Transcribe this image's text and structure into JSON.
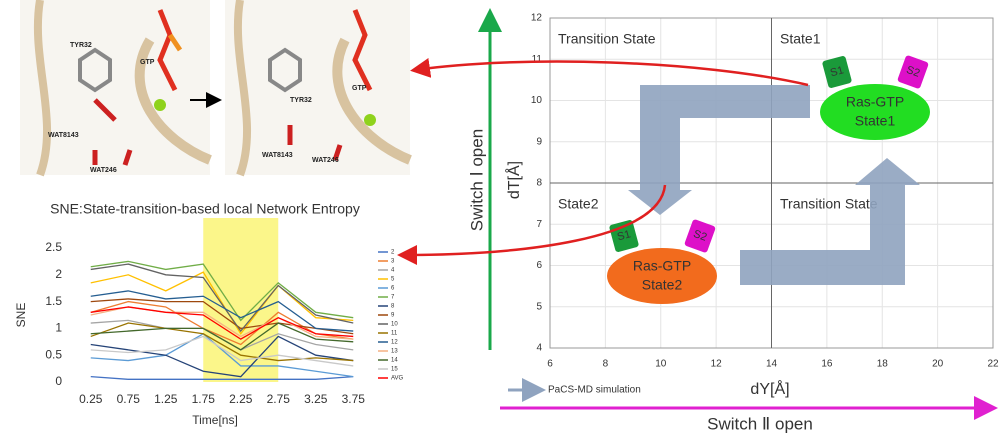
{
  "structures": {
    "left": [
      "TYR32",
      "GTP",
      "WAT8143",
      "WAT246"
    ],
    "right": [
      "TYR32",
      "GTP",
      "WAT8143",
      "WAT246"
    ]
  },
  "chart_data": [
    {
      "type": "line",
      "title": "SNE:State-transition-based local Network Entropy",
      "x_label": "Time[ns]",
      "y_label": "SNE",
      "categories": [
        "0.25",
        "0.75",
        "1.25",
        "1.75",
        "2.25",
        "2.75",
        "3.25",
        "3.75"
      ],
      "ylim": [
        0,
        2.5
      ],
      "yticks": [
        0,
        0.5,
        1,
        1.5,
        2,
        2.5
      ],
      "highlight": {
        "from": "1.75",
        "to": "2.75",
        "color": "#fbf68a"
      },
      "series": [
        {
          "name": "2",
          "color": "#4472c4",
          "values": [
            0.1,
            0.05,
            0.05,
            0.05,
            0.05,
            0.05,
            0.05,
            0.1
          ]
        },
        {
          "name": "3",
          "color": "#ed7d31",
          "values": [
            1.3,
            1.5,
            1.4,
            1.0,
            0.7,
            1.3,
            0.9,
            0.8
          ]
        },
        {
          "name": "4",
          "color": "#a5a5a5",
          "values": [
            1.1,
            1.15,
            1.0,
            1.0,
            0.6,
            0.9,
            0.7,
            0.6
          ]
        },
        {
          "name": "5",
          "color": "#ffc000",
          "values": [
            1.85,
            2.0,
            1.7,
            2.05,
            0.9,
            1.8,
            1.2,
            1.15
          ]
        },
        {
          "name": "6",
          "color": "#5b9bd5",
          "values": [
            0.45,
            0.4,
            0.5,
            0.9,
            0.3,
            0.3,
            0.2,
            0.1
          ]
        },
        {
          "name": "7",
          "color": "#70ad47",
          "values": [
            2.15,
            2.25,
            2.1,
            2.2,
            1.15,
            1.85,
            1.3,
            1.2
          ]
        },
        {
          "name": "8",
          "color": "#264478",
          "values": [
            0.7,
            0.6,
            0.5,
            0.2,
            0.1,
            0.85,
            0.5,
            0.4
          ]
        },
        {
          "name": "9",
          "color": "#9e480e",
          "values": [
            1.5,
            1.55,
            1.5,
            1.5,
            1.0,
            1.1,
            1.0,
            0.9
          ]
        },
        {
          "name": "10",
          "color": "#636363",
          "values": [
            2.1,
            2.2,
            2.0,
            1.95,
            0.95,
            1.8,
            1.25,
            1.1
          ]
        },
        {
          "name": "11",
          "color": "#997300",
          "values": [
            0.85,
            1.1,
            1.0,
            0.9,
            0.5,
            0.4,
            0.45,
            0.4
          ]
        },
        {
          "name": "12",
          "color": "#255e91",
          "values": [
            1.6,
            1.7,
            1.55,
            1.6,
            1.2,
            1.5,
            1.0,
            0.95
          ]
        },
        {
          "name": "13",
          "color": "#f4b183",
          "values": [
            1.25,
            1.4,
            1.3,
            1.3,
            0.85,
            1.2,
            0.85,
            0.8
          ]
        },
        {
          "name": "14",
          "color": "#43682b",
          "values": [
            0.9,
            0.95,
            1.0,
            1.0,
            0.6,
            1.1,
            0.8,
            0.75
          ]
        },
        {
          "name": "15",
          "color": "#c9c9c9",
          "values": [
            0.6,
            0.55,
            0.6,
            0.85,
            0.4,
            0.5,
            0.4,
            0.3
          ]
        },
        {
          "name": "AVG",
          "color": "#ff0000",
          "values": [
            1.3,
            1.4,
            1.3,
            1.25,
            0.8,
            1.2,
            0.9,
            0.85
          ]
        }
      ]
    },
    {
      "type": "state_map",
      "x_label": "dY[Å]",
      "y_label": "dT[Å]",
      "xlim": [
        6,
        22
      ],
      "xticks": [
        6,
        8,
        10,
        12,
        14,
        16,
        18,
        20,
        22
      ],
      "ylim": [
        4,
        12
      ],
      "yticks": [
        4,
        5,
        6,
        7,
        8,
        9,
        10,
        11,
        12
      ],
      "grid": true,
      "dividers": {
        "x": 14,
        "y": 8
      },
      "regions": [
        "Transition State",
        "State1",
        "State2",
        "Transition State"
      ],
      "states": [
        {
          "name": "Ras-GTP",
          "label": "State1",
          "color": "#22dd22"
        },
        {
          "name": "Ras-GTP",
          "label": "State2",
          "color": "#f26b1d"
        }
      ],
      "tags": [
        "S1",
        "S2"
      ],
      "y_arrow_label": "Switch Ⅰ open",
      "x_arrow_label": "Switch Ⅱ open",
      "legend": "PaCS-MD simulation"
    }
  ]
}
